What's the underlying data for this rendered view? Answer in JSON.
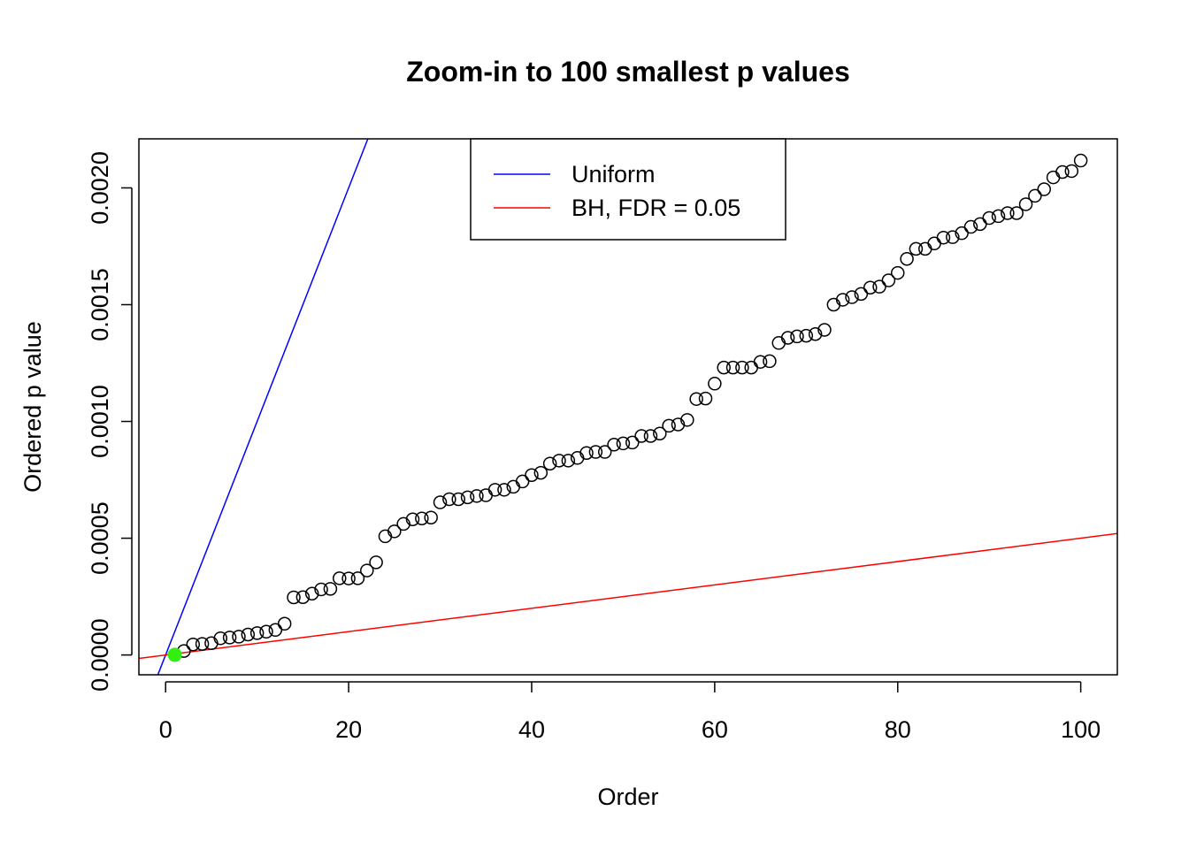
{
  "chart_data": {
    "type": "scatter",
    "title": "Zoom-in to 100 smallest p values",
    "xlabel": "Order",
    "ylabel": "Ordered p value",
    "xlim": [
      -2.92,
      104.0
    ],
    "ylim": [
      -8.48e-05,
      0.00221
    ],
    "x_ticks": [
      0,
      20,
      40,
      60,
      80,
      100
    ],
    "x_tick_labels": [
      "0",
      "20",
      "40",
      "60",
      "80",
      "100"
    ],
    "y_ticks": [
      0.0,
      0.0005,
      0.001,
      0.0015,
      0.002
    ],
    "y_tick_labels": [
      "0.0000",
      "0.0005",
      "0.0010",
      "0.0015",
      "0.0020"
    ],
    "grid": false,
    "legend": {
      "position": "top-center",
      "entries": [
        {
          "label": "Uniform",
          "color": "#0000ff"
        },
        {
          "label": "BH, FDR = 0.05",
          "color": "#ff0000"
        }
      ]
    },
    "lines": [
      {
        "name": "Uniform",
        "color": "#0000ff",
        "intercept": 0,
        "slope": 0.0001
      },
      {
        "name": "BH, FDR = 0.05",
        "color": "#ff0000",
        "intercept": 0,
        "slope": 5e-06
      }
    ],
    "series": [
      {
        "color": "#000000",
        "marker": "open-circle",
        "x": [
          1,
          2,
          3,
          4,
          5,
          6,
          7,
          8,
          9,
          10,
          11,
          12,
          13,
          14,
          15,
          16,
          17,
          18,
          19,
          20,
          21,
          22,
          23,
          24,
          25,
          26,
          27,
          28,
          29,
          30,
          31,
          32,
          33,
          34,
          35,
          36,
          37,
          38,
          39,
          40,
          41,
          42,
          43,
          44,
          45,
          46,
          47,
          48,
          49,
          50,
          51,
          52,
          53,
          54,
          55,
          56,
          57,
          58,
          59,
          60,
          61,
          62,
          63,
          64,
          65,
          66,
          67,
          68,
          69,
          70,
          71,
          72,
          73,
          74,
          75,
          76,
          77,
          78,
          79,
          80,
          81,
          82,
          83,
          84,
          85,
          86,
          87,
          88,
          89,
          90,
          91,
          92,
          93,
          94,
          95,
          96,
          97,
          98,
          99,
          100
        ],
        "y": [
          7e-07,
          1.71e-05,
          4.51e-05,
          4.74e-05,
          5.04e-05,
          7.16e-05,
          7.46e-05,
          7.84e-05,
          8.75e-05,
          9.36e-05,
          9.97e-05,
          0.0001073,
          0.0001338,
          0.0002467,
          0.0002475,
          0.0002626,
          0.0002808,
          0.0002831,
          0.0003285,
          0.0003277,
          0.0003285,
          0.0003618,
          0.0003967,
          0.0005081,
          0.0005293,
          0.0005611,
          0.0005808,
          0.0005846,
          0.0005884,
          0.0006535,
          0.000667,
          0.000667,
          0.000675,
          0.0006808,
          0.0006838,
          0.0007073,
          0.0007073,
          0.0007202,
          0.0007429,
          0.0007702,
          0.00078,
          0.0008194,
          0.0008323,
          0.0008323,
          0.0008437,
          0.0008649,
          0.0008694,
          0.0008694,
          0.0009005,
          0.0009058,
          0.0009096,
          0.0009376,
          0.0009376,
          0.0009482,
          0.0009815,
          0.0009868,
          0.0010065,
          0.0010959,
          0.0010982,
          0.0011618,
          0.0012307,
          0.0012307,
          0.0012307,
          0.0012307,
          0.001255,
          0.001258,
          0.001336,
          0.001358,
          0.001364,
          0.001367,
          0.001374,
          0.001392,
          0.0015,
          0.001521,
          0.001532,
          0.001546,
          0.001573,
          0.001577,
          0.001604,
          0.001636,
          0.001696,
          0.001739,
          0.001739,
          0.001762,
          0.001787,
          0.001789,
          0.001806,
          0.001833,
          0.001845,
          0.001871,
          0.001879,
          0.001892,
          0.001892,
          0.00193,
          0.001966,
          0.001994,
          0.002045,
          0.002068,
          0.002072,
          0.002117
        ]
      }
    ],
    "highlight_point": {
      "x": 1,
      "y": 7e-07,
      "color": "#33ee11"
    }
  }
}
